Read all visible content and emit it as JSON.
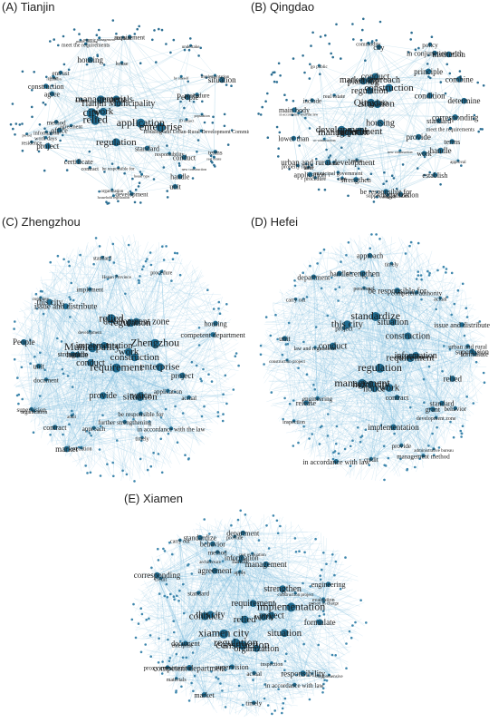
{
  "panels": [
    {
      "label": "(A) Tianjin",
      "style": "sparse",
      "words": [
        {
          "t": "city",
          "s": 13
        },
        {
          "t": "application",
          "s": 12
        },
        {
          "t": "relied",
          "s": 12
        },
        {
          "t": "enterprise",
          "s": 12
        },
        {
          "t": "management",
          "s": 11
        },
        {
          "t": "regulation",
          "s": 11
        },
        {
          "t": "Tianjin Municipality",
          "s": 10
        },
        {
          "t": "work",
          "s": 11
        },
        {
          "t": "materials",
          "s": 10
        },
        {
          "t": "construction",
          "s": 8
        },
        {
          "t": "standard",
          "s": 8
        },
        {
          "t": "situation",
          "s": 9
        },
        {
          "t": "conduct",
          "s": 8
        },
        {
          "t": "People",
          "s": 9
        },
        {
          "t": "project",
          "s": 9
        },
        {
          "t": "housing",
          "s": 9
        },
        {
          "t": "unit",
          "s": 8
        },
        {
          "t": "office",
          "s": 8
        },
        {
          "t": "agree",
          "s": 8
        },
        {
          "t": "handle",
          "s": 8
        },
        {
          "t": "certificate",
          "s": 8
        },
        {
          "t": "terms",
          "s": 7
        },
        {
          "t": "development",
          "s": 7
        },
        {
          "t": "method",
          "s": 7
        },
        {
          "t": "entrust",
          "s": 7
        },
        {
          "t": "requirement",
          "s": 7
        },
        {
          "t": "responsibility",
          "s": 6
        },
        {
          "t": "agreement",
          "s": 6
        },
        {
          "t": "Housing and Urban-Rural Development Commission",
          "s": 6
        },
        {
          "t": "meet the requirements",
          "s": 6
        },
        {
          "t": "procedure",
          "s": 7
        },
        {
          "t": "work days",
          "s": 6
        },
        {
          "t": "residence",
          "s": 6
        },
        {
          "t": "information",
          "s": 6
        },
        {
          "t": "be responsible for",
          "s": 5
        },
        {
          "t": "house",
          "s": 6
        },
        {
          "t": "organization",
          "s": 5
        },
        {
          "t": "undertake",
          "s": 5
        },
        {
          "t": "implementation",
          "s": 5
        },
        {
          "t": "distribute",
          "s": 5
        },
        {
          "t": "facilities",
          "s": 4
        },
        {
          "t": "contract",
          "s": 6
        },
        {
          "t": "house type",
          "s": 4
        },
        {
          "t": "public housing",
          "s": 4
        },
        {
          "t": "household registration",
          "s": 4
        },
        {
          "t": "population",
          "s": 4
        },
        {
          "t": "regulation",
          "s": 4
        },
        {
          "t": "real estate",
          "s": 4
        },
        {
          "t": "period",
          "s": 4
        },
        {
          "t": "change",
          "s": 4
        },
        {
          "t": "new construction",
          "s": 4
        },
        {
          "t": "by oneself",
          "s": 4
        },
        {
          "t": "ID subject",
          "s": 4
        },
        {
          "t": "property management",
          "s": 4
        }
      ]
    },
    {
      "label": "(B) Qingdao",
      "style": "sparse",
      "words": [
        {
          "t": "Qingdao",
          "s": 11
        },
        {
          "t": "department",
          "s": 11
        },
        {
          "t": "development",
          "s": 11
        },
        {
          "t": "management",
          "s": 11
        },
        {
          "t": "situation",
          "s": 11
        },
        {
          "t": "market approach",
          "s": 10
        },
        {
          "t": "construction",
          "s": 11
        },
        {
          "t": "housing",
          "s": 10
        },
        {
          "t": "regulation",
          "s": 10
        },
        {
          "t": "project",
          "s": 10
        },
        {
          "t": "conduct",
          "s": 10
        },
        {
          "t": "planning",
          "s": 10
        },
        {
          "t": "urban and rural development",
          "s": 9
        },
        {
          "t": "institution",
          "s": 9
        },
        {
          "t": "corresponding",
          "s": 9
        },
        {
          "t": "provide",
          "s": 9
        },
        {
          "t": "principle",
          "s": 9
        },
        {
          "t": "determine",
          "s": 9
        },
        {
          "t": "condition",
          "s": 9
        },
        {
          "t": "handle",
          "s": 9
        },
        {
          "t": "combine",
          "s": 9
        },
        {
          "t": "be responsible for",
          "s": 8
        },
        {
          "t": "in conjunction with",
          "s": 8
        },
        {
          "t": "organization",
          "s": 8
        },
        {
          "t": "strengthen",
          "s": 8
        },
        {
          "t": "main body",
          "s": 8
        },
        {
          "t": "establish",
          "s": 8
        },
        {
          "t": "lower than",
          "s": 8
        },
        {
          "t": "application",
          "s": 8
        },
        {
          "t": "terms",
          "s": 8
        },
        {
          "t": "standard",
          "s": 8
        },
        {
          "t": "city",
          "s": 8
        },
        {
          "t": "municipal government",
          "s": 6
        },
        {
          "t": "property rights",
          "s": 6
        },
        {
          "t": "meet the requirements",
          "s": 6
        },
        {
          "t": "supporting facilities",
          "s": 6
        },
        {
          "t": "policy",
          "s": 7
        },
        {
          "t": "include",
          "s": 7
        },
        {
          "t": "work",
          "s": 8
        },
        {
          "t": "commodity",
          "s": 6
        },
        {
          "t": "real estate",
          "s": 6
        },
        {
          "t": "procedure",
          "s": 6
        },
        {
          "t": "co-construction",
          "s": 4
        },
        {
          "t": "in accordance with the law",
          "s": 4
        },
        {
          "t": "transaction",
          "s": 4
        },
        {
          "t": "new construction",
          "s": 4
        },
        {
          "t": "go public",
          "s": 5
        },
        {
          "t": "approval",
          "s": 5
        },
        {
          "t": "land",
          "s": 6
        },
        {
          "t": "cost",
          "s": 6
        },
        {
          "t": "price",
          "s": 6
        },
        {
          "t": "sale",
          "s": 6
        }
      ]
    },
    {
      "label": "(C) Zhengzhou",
      "style": "dense",
      "words": [
        {
          "t": "Zhengzhou",
          "s": 12
        },
        {
          "t": "Municipality",
          "s": 12
        },
        {
          "t": "requirement",
          "s": 12
        },
        {
          "t": "relied",
          "s": 12
        },
        {
          "t": "enterprise",
          "s": 11
        },
        {
          "t": "situation",
          "s": 11
        },
        {
          "t": "construction",
          "s": 11
        },
        {
          "t": "work",
          "s": 11
        },
        {
          "t": "regulation",
          "s": 11
        },
        {
          "t": "notice",
          "s": 10
        },
        {
          "t": "provide",
          "s": 10
        },
        {
          "t": "conduct",
          "s": 10
        },
        {
          "t": "implementation",
          "s": 10
        },
        {
          "t": "development zone",
          "s": 10
        },
        {
          "t": "issue and distribute",
          "s": 9
        },
        {
          "t": "People",
          "s": 9
        },
        {
          "t": "this city",
          "s": 9
        },
        {
          "t": "handle",
          "s": 9
        },
        {
          "t": "market",
          "s": 9
        },
        {
          "t": "project",
          "s": 9
        },
        {
          "t": "strengthen",
          "s": 8
        },
        {
          "t": "contract",
          "s": 8
        },
        {
          "t": "unit",
          "s": 8
        },
        {
          "t": "housing",
          "s": 8
        },
        {
          "t": "competent department",
          "s": 8
        },
        {
          "t": "further strengthening",
          "s": 7
        },
        {
          "t": "in accordance with the law",
          "s": 7
        },
        {
          "t": "supervision",
          "s": 7
        },
        {
          "t": "implement",
          "s": 7
        },
        {
          "t": "document",
          "s": 7
        },
        {
          "t": "application",
          "s": 7
        },
        {
          "t": "actual",
          "s": 7
        },
        {
          "t": "be responsible for",
          "s": 7
        },
        {
          "t": "approach",
          "s": 7
        },
        {
          "t": "procedure",
          "s": 6
        },
        {
          "t": "standard",
          "s": 6
        },
        {
          "t": "organization",
          "s": 6
        },
        {
          "t": "timely",
          "s": 6
        },
        {
          "t": "execution",
          "s": 6
        },
        {
          "t": "Henan Province",
          "s": 5
        },
        {
          "t": "development",
          "s": 5
        },
        {
          "t": "audit",
          "s": 5
        },
        {
          "t": "complete",
          "s": 5
        }
      ]
    },
    {
      "label": "(D) Hefei",
      "style": "dense",
      "words": [
        {
          "t": "regulation",
          "s": 12
        },
        {
          "t": "standardize",
          "s": 12
        },
        {
          "t": "management",
          "s": 12
        },
        {
          "t": "requirement",
          "s": 11
        },
        {
          "t": "hefei city",
          "s": 11
        },
        {
          "t": "this city",
          "s": 11
        },
        {
          "t": "work",
          "s": 11
        },
        {
          "t": "conduct",
          "s": 10
        },
        {
          "t": "situation",
          "s": 10
        },
        {
          "t": "information",
          "s": 10
        },
        {
          "t": "construction",
          "s": 10
        },
        {
          "t": "notice",
          "s": 10
        },
        {
          "t": "be responsible for",
          "s": 9
        },
        {
          "t": "strengthen",
          "s": 9
        },
        {
          "t": "implementation",
          "s": 9
        },
        {
          "t": "issue and distribute",
          "s": 8
        },
        {
          "t": "in accordance with law",
          "s": 8
        },
        {
          "t": "relied",
          "s": 9
        },
        {
          "t": "approach",
          "s": 8
        },
        {
          "t": "supervision",
          "s": 8
        },
        {
          "t": "standard",
          "s": 8
        },
        {
          "t": "unit",
          "s": 8
        },
        {
          "t": "grant",
          "s": 8
        },
        {
          "t": "handle",
          "s": 8
        },
        {
          "t": "department",
          "s": 8
        },
        {
          "t": "formulate",
          "s": 8
        },
        {
          "t": "contract",
          "s": 8
        },
        {
          "t": "release",
          "s": 8
        },
        {
          "t": "urban and rural",
          "s": 7
        },
        {
          "t": "competent authority",
          "s": 7
        },
        {
          "t": "management method",
          "s": 7
        },
        {
          "t": "engineering",
          "s": 7
        },
        {
          "t": "behavior",
          "s": 7
        },
        {
          "t": "credit",
          "s": 7
        },
        {
          "t": "carry out",
          "s": 6
        },
        {
          "t": "provide",
          "s": 7
        },
        {
          "t": "organization",
          "s": 7
        },
        {
          "t": "actual",
          "s": 6
        },
        {
          "t": "law and regulations",
          "s": 6
        },
        {
          "t": "personnel",
          "s": 6
        },
        {
          "t": "project",
          "s": 7
        },
        {
          "t": "inspection",
          "s": 6
        },
        {
          "t": "timely",
          "s": 6
        },
        {
          "t": "development zone",
          "s": 6
        },
        {
          "t": "administrative bureau",
          "s": 5
        },
        {
          "t": "construction project",
          "s": 5
        }
      ]
    },
    {
      "label": "(E) Xiamen",
      "style": "dense",
      "words": [
        {
          "t": "xiamen city",
          "s": 12
        },
        {
          "t": "implementation",
          "s": 12
        },
        {
          "t": "construction",
          "s": 12
        },
        {
          "t": "regulation",
          "s": 12
        },
        {
          "t": "conduct",
          "s": 11
        },
        {
          "t": "situation",
          "s": 11
        },
        {
          "t": "relied",
          "s": 11
        },
        {
          "t": "organization",
          "s": 10
        },
        {
          "t": "strengthen",
          "s": 10
        },
        {
          "t": "requirement",
          "s": 10
        },
        {
          "t": "this city",
          "s": 10
        },
        {
          "t": "project",
          "s": 10
        },
        {
          "t": "work",
          "s": 10
        },
        {
          "t": "agreement",
          "s": 9
        },
        {
          "t": "management",
          "s": 9
        },
        {
          "t": "competent department",
          "s": 9
        },
        {
          "t": "formulate",
          "s": 9
        },
        {
          "t": "corresponding",
          "s": 9
        },
        {
          "t": "responsibility",
          "s": 9
        },
        {
          "t": "engineering",
          "s": 8
        },
        {
          "t": "standardize",
          "s": 8
        },
        {
          "t": "behavior",
          "s": 8
        },
        {
          "t": "information",
          "s": 8
        },
        {
          "t": "document",
          "s": 8
        },
        {
          "t": "market",
          "s": 8
        },
        {
          "t": "department",
          "s": 8
        },
        {
          "t": "in accordance with law",
          "s": 7
        },
        {
          "t": "proxy construction",
          "s": 7
        },
        {
          "t": "supervision",
          "s": 8
        },
        {
          "t": "actual",
          "s": 7
        },
        {
          "t": "timely",
          "s": 7
        },
        {
          "t": "handle",
          "s": 7
        },
        {
          "t": "evaluation",
          "s": 6
        },
        {
          "t": "inspection",
          "s": 6
        },
        {
          "t": "materials",
          "s": 6
        },
        {
          "t": "method",
          "s": 7
        },
        {
          "t": "standard",
          "s": 7
        },
        {
          "t": "credit",
          "s": 6
        },
        {
          "t": "provide",
          "s": 6
        },
        {
          "t": "apply",
          "s": 6
        },
        {
          "t": "carry out",
          "s": 6
        },
        {
          "t": "enterprise",
          "s": 6
        },
        {
          "t": "person in charge",
          "s": 5
        },
        {
          "t": "construction project",
          "s": 5
        },
        {
          "t": "comprehensive",
          "s": 5
        },
        {
          "t": "architecture",
          "s": 5
        },
        {
          "t": "cost evaluation",
          "s": 5
        }
      ]
    }
  ]
}
